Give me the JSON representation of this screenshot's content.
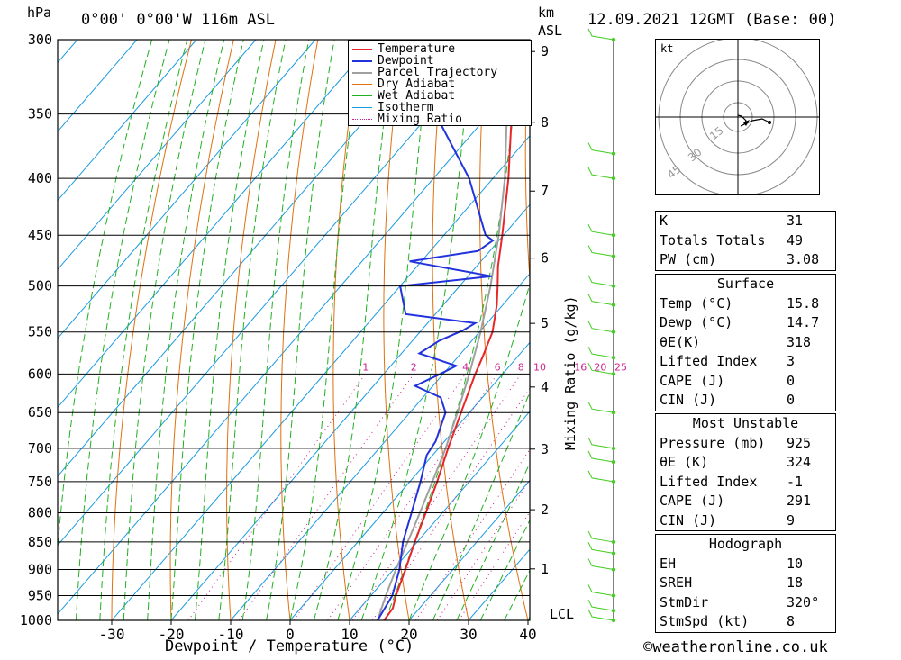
{
  "header": {
    "location": "0°00' 0°00'W 116m ASL",
    "datetime": "12.09.2021 12GMT (Base: 00)",
    "hpa_label": "hPa",
    "km_label": "km",
    "asl_label": "ASL",
    "lcl_label": "LCL"
  },
  "footer": {
    "copyright": "©weatheronline.co.uk"
  },
  "colors": {
    "temperature": "#e8262a",
    "dewpoint": "#2233dd",
    "parcel": "#a0a0a0",
    "dry_adiabat": "#e07010",
    "wet_adiabat": "#20b020",
    "isotherm": "#1a9ae0",
    "mixing_ratio": "#cc2290",
    "wind": "#44cc22"
  },
  "chart_data": {
    "type": "line",
    "title": "",
    "xlabel": "Dewpoint / Temperature (°C)",
    "ylabel": "hPa",
    "y2label": "Mixing Ratio (g/kg)",
    "xlim": [
      -40,
      40
    ],
    "ylim": [
      1000,
      300
    ],
    "x_ticks": [
      "-30",
      "-20",
      "-10",
      "0",
      "10",
      "20",
      "30",
      "40"
    ],
    "pressure_levels": [
      300,
      350,
      400,
      450,
      500,
      550,
      600,
      650,
      700,
      750,
      800,
      850,
      900,
      950,
      1000
    ],
    "km_ticks": [
      "1",
      "2",
      "3",
      "4",
      "5",
      "6",
      "7",
      "8",
      "9"
    ],
    "mixing_ratio_labels": [
      "1",
      "2",
      "4",
      "6",
      "8",
      "10",
      "16",
      "20",
      "25"
    ],
    "legend": [
      "Temperature",
      "Dewpoint",
      "Parcel Trajectory",
      "Dry Adiabat",
      "Wet Adiabat",
      "Isotherm",
      "Mixing Ratio"
    ],
    "series": [
      {
        "name": "Temperature",
        "points": [
          [
            1000,
            15.8
          ],
          [
            975,
            15.5
          ],
          [
            950,
            14.2
          ],
          [
            900,
            12.0
          ],
          [
            850,
            9.6
          ],
          [
            800,
            7.2
          ],
          [
            750,
            4.6
          ],
          [
            700,
            1.6
          ],
          [
            650,
            -1.4
          ],
          [
            600,
            -4.6
          ],
          [
            580,
            -5.8
          ],
          [
            550,
            -7.8
          ],
          [
            520,
            -11
          ],
          [
            500,
            -13.6
          ],
          [
            480,
            -16.4
          ],
          [
            450,
            -20.2
          ],
          [
            400,
            -27.4
          ],
          [
            350,
            -36.2
          ],
          [
            300,
            -46.0
          ]
        ]
      },
      {
        "name": "Dewpoint",
        "points": [
          [
            1000,
            14.7
          ],
          [
            950,
            13.6
          ],
          [
            900,
            11.0
          ],
          [
            850,
            7.6
          ],
          [
            800,
            4.8
          ],
          [
            750,
            1.8
          ],
          [
            710,
            -1.0
          ],
          [
            690,
            -1.5
          ],
          [
            650,
            -4.0
          ],
          [
            630,
            -7.0
          ],
          [
            615,
            -13.0
          ],
          [
            600,
            -10.5
          ],
          [
            590,
            -9.0
          ],
          [
            575,
            -17.0
          ],
          [
            560,
            -15.5
          ],
          [
            548,
            -13.0
          ],
          [
            540,
            -12.0
          ],
          [
            530,
            -25.0
          ],
          [
            500,
            -30.0
          ],
          [
            490,
            -16.0
          ],
          [
            475,
            -32.0
          ],
          [
            465,
            -22.0
          ],
          [
            455,
            -21.0
          ],
          [
            450,
            -23.0
          ],
          [
            400,
            -34.0
          ],
          [
            350,
            -49.0
          ],
          [
            340,
            -50.0
          ],
          [
            300,
            -57.0
          ]
        ]
      },
      {
        "name": "Parcel Trajectory",
        "points": [
          [
            1000,
            14.7
          ],
          [
            950,
            12.5
          ],
          [
            900,
            10.4
          ],
          [
            850,
            8.4
          ],
          [
            800,
            6.2
          ],
          [
            750,
            3.8
          ],
          [
            700,
            1.2
          ],
          [
            650,
            -2.0
          ],
          [
            600,
            -5.6
          ],
          [
            550,
            -9.8
          ],
          [
            500,
            -14.8
          ],
          [
            450,
            -20.8
          ],
          [
            400,
            -28.0
          ],
          [
            350,
            -37.0
          ],
          [
            300,
            -48.0
          ]
        ]
      }
    ]
  },
  "hodograph": {
    "unit": "kt",
    "ring_labels": [
      "15",
      "30",
      "45"
    ]
  },
  "indices": [
    {
      "label": "K",
      "value": "31"
    },
    {
      "label": "Totals Totals",
      "value": "49"
    },
    {
      "label": "PW (cm)",
      "value": "3.08"
    }
  ],
  "surface": {
    "title": "Surface",
    "rows": [
      {
        "label": "Temp (°C)",
        "value": "15.8"
      },
      {
        "label": "Dewp (°C)",
        "value": "14.7"
      },
      {
        "label": "θE(K)",
        "value": "318"
      },
      {
        "label": "Lifted Index",
        "value": "3"
      },
      {
        "label": "CAPE (J)",
        "value": "0"
      },
      {
        "label": "CIN (J)",
        "value": "0"
      }
    ]
  },
  "most_unstable": {
    "title": "Most Unstable",
    "rows": [
      {
        "label": "Pressure (mb)",
        "value": "925"
      },
      {
        "label": "θE (K)",
        "value": "324"
      },
      {
        "label": "Lifted Index",
        "value": "-1"
      },
      {
        "label": "CAPE (J)",
        "value": "291"
      },
      {
        "label": "CIN (J)",
        "value": "9"
      }
    ]
  },
  "hodograph_table": {
    "title": "Hodograph",
    "rows": [
      {
        "label": "EH",
        "value": "10"
      },
      {
        "label": "SREH",
        "value": "18"
      },
      {
        "label": "StmDir",
        "value": "320°"
      },
      {
        "label": "StmSpd (kt)",
        "value": "8"
      }
    ]
  }
}
